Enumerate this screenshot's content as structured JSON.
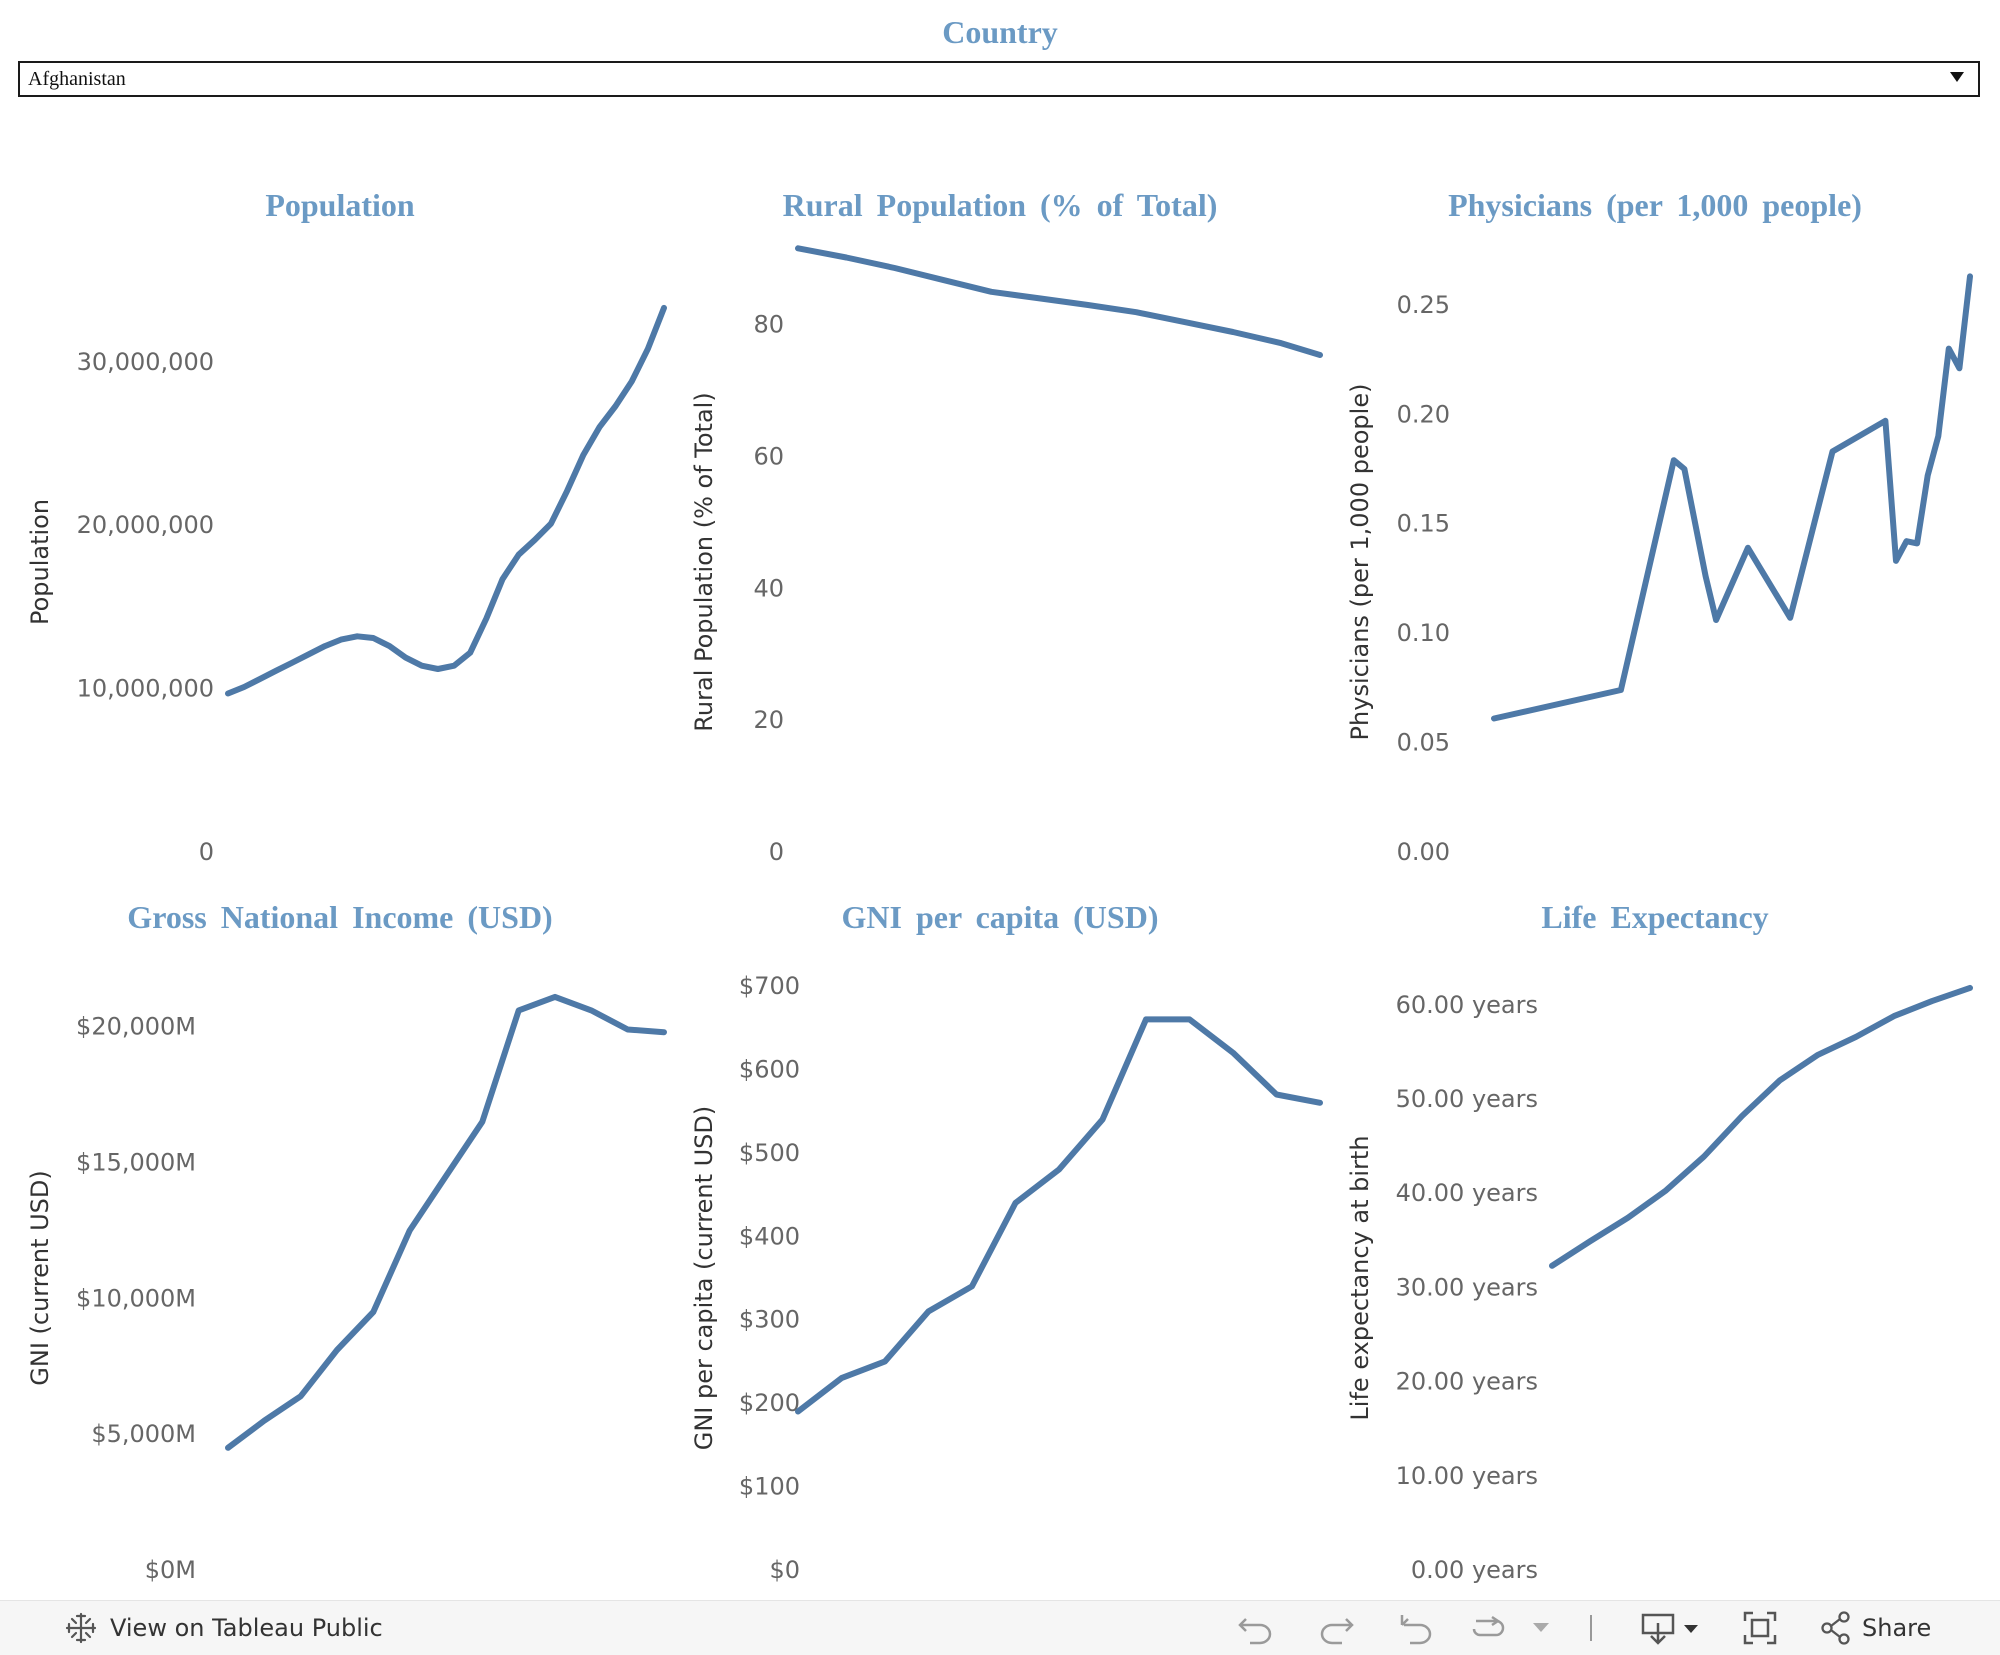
{
  "filter": {
    "title": "Country",
    "selected": "Afghanistan"
  },
  "toolbar": {
    "view_label": "View on Tableau Public",
    "share_label": "Share",
    "icons": [
      "tableau-logo-icon",
      "undo-icon",
      "redo-icon",
      "revert-icon",
      "refresh-icon",
      "pause-dropdown-icon",
      "download-icon",
      "fullscreen-icon",
      "share-icon"
    ]
  },
  "chart_data": [
    {
      "type": "line",
      "title": "Population",
      "ylabel": "Population",
      "ylim": [
        0,
        35500000
      ],
      "yticks": [
        0,
        10000000,
        20000000,
        30000000
      ],
      "ytick_labels": [
        "0",
        "10,000,000",
        "20,000,000",
        "30,000,000"
      ],
      "x": [
        1960,
        1962,
        1964,
        1966,
        1968,
        1970,
        1972,
        1974,
        1976,
        1978,
        1980,
        1982,
        1984,
        1986,
        1988,
        1990,
        1992,
        1994,
        1996,
        1998,
        2000,
        2002,
        2004,
        2006,
        2008,
        2010,
        2012,
        2014
      ],
      "values": [
        9700000,
        10100000,
        10600000,
        11100000,
        11600000,
        12100000,
        12600000,
        13000000,
        13200000,
        13100000,
        12600000,
        11900000,
        11400000,
        11200000,
        11400000,
        12200000,
        14300000,
        16700000,
        18200000,
        19100000,
        20100000,
        22100000,
        24300000,
        26000000,
        27300000,
        28800000,
        30800000,
        33300000
      ]
    },
    {
      "type": "line",
      "title": "Rural Population (% of Total)",
      "ylabel": "Rural Population (% of Total)",
      "ylim": [
        0,
        88
      ],
      "yticks": [
        0,
        20,
        40,
        60,
        80
      ],
      "ytick_labels": [
        "0",
        "20",
        "40",
        "60",
        "80"
      ],
      "x": [
        1960,
        1965,
        1970,
        1975,
        1980,
        1985,
        1990,
        1995,
        2000,
        2005,
        2010,
        2014
      ],
      "values": [
        91.6,
        90.2,
        88.6,
        86.8,
        85.0,
        84.0,
        83.0,
        81.9,
        80.4,
        78.9,
        77.2,
        75.4
      ]
    },
    {
      "type": "line",
      "title": "Physicians (per 1,000 people)",
      "ylabel": "Physicians (per 1,000 people)",
      "ylim": [
        0,
        0.265
      ],
      "yticks": [
        0,
        0.05,
        0.1,
        0.15,
        0.2,
        0.25
      ],
      "ytick_labels": [
        "0.00",
        "0.05",
        "0.10",
        "0.15",
        "0.20",
        "0.25"
      ],
      "x": [
        1960,
        1972,
        1977,
        1978,
        1980,
        1981,
        1984,
        1988,
        1992,
        1997,
        1998,
        1999,
        2000,
        2001,
        2002,
        2003,
        2004,
        2005
      ],
      "values": [
        0.061,
        0.074,
        0.179,
        0.175,
        0.126,
        0.106,
        0.139,
        0.107,
        0.183,
        0.197,
        0.133,
        0.142,
        0.141,
        0.172,
        0.19,
        0.23,
        0.221,
        0.263
      ]
    },
    {
      "type": "line",
      "title": "Gross National Income (USD)",
      "ylabel": "GNI (current USD)",
      "ylim": [
        0,
        21500
      ],
      "yticks": [
        0,
        5000,
        10000,
        15000,
        20000
      ],
      "ytick_labels": [
        "$0M",
        "$5,000M",
        "$10,000M",
        "$15,000M",
        "$20,000M"
      ],
      "x": [
        2002,
        2003,
        2004,
        2005,
        2006,
        2007,
        2008,
        2009,
        2010,
        2011,
        2012,
        2013,
        2014
      ],
      "values": [
        4500,
        5500,
        6400,
        8100,
        9500,
        12500,
        14500,
        16500,
        20600,
        21100,
        20600,
        19900,
        19800
      ]
    },
    {
      "type": "line",
      "title": "GNI per capita (USD)",
      "ylabel": "GNI per capita (current USD)",
      "ylim": [
        0,
        700
      ],
      "yticks": [
        0,
        100,
        200,
        300,
        400,
        500,
        600,
        700
      ],
      "ytick_labels": [
        "$0",
        "$100",
        "$200",
        "$300",
        "$400",
        "$500",
        "$600",
        "$700"
      ],
      "x": [
        2002,
        2003,
        2004,
        2005,
        2006,
        2007,
        2008,
        2009,
        2010,
        2011,
        2012,
        2013,
        2014
      ],
      "values": [
        190,
        230,
        250,
        310,
        340,
        440,
        480,
        540,
        660,
        660,
        620,
        570,
        560
      ]
    },
    {
      "type": "line",
      "title": "Life Expectancy",
      "ylabel": "Life expectancy at birth",
      "ylim": [
        0,
        62
      ],
      "yticks": [
        0,
        10,
        20,
        30,
        40,
        50,
        60
      ],
      "ytick_labels": [
        "0.00 years",
        "10.00 years",
        "20.00 years",
        "30.00 years",
        "40.00 years",
        "50.00 years",
        "60.00 years"
      ],
      "x": [
        1960,
        1965,
        1970,
        1975,
        1980,
        1985,
        1990,
        1995,
        2000,
        2005,
        2010,
        2015
      ],
      "values": [
        32.3,
        34.9,
        37.4,
        40.3,
        43.9,
        48.2,
        52.0,
        54.7,
        56.6,
        58.8,
        60.4,
        61.8
      ]
    }
  ]
}
